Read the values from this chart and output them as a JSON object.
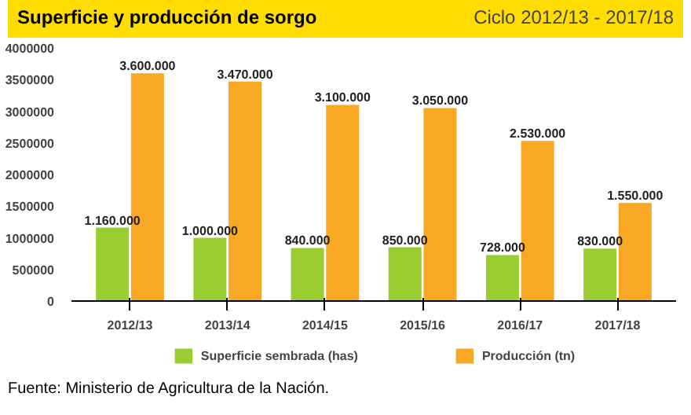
{
  "chart_data": {
    "type": "bar",
    "title": "Superficie y producción de sorgo",
    "subtitle": "Ciclo 2012/13 - 2017/18",
    "categories": [
      "2012/13",
      "2013/14",
      "2014/15",
      "2015/16",
      "2016/17",
      "2017/18"
    ],
    "series": [
      {
        "name": "Superficie sembrada (has)",
        "color": "#9acd32",
        "values": [
          1160000,
          1000000,
          840000,
          850000,
          728000,
          830000
        ],
        "value_labels": [
          "1.160.000",
          "1.000.000",
          "840.000",
          "850.000",
          "728.000",
          "830.000"
        ]
      },
      {
        "name": "Producción (tn)",
        "color": "#f9a825",
        "values": [
          3600000,
          3470000,
          3100000,
          3050000,
          2530000,
          1550000
        ],
        "value_labels": [
          "3.600.000",
          "3.470.000",
          "3.100.000",
          "3.050.000",
          "2.530.000",
          "1.550.000"
        ]
      }
    ],
    "ylim": [
      0,
      4000000
    ],
    "yticks": [
      0,
      500000,
      1000000,
      1500000,
      2000000,
      2500000,
      3000000,
      3500000,
      4000000
    ],
    "grid": false,
    "legend": "bottom",
    "annotations": [
      "Fuente: Ministerio de Agricultura de la Nación."
    ]
  }
}
